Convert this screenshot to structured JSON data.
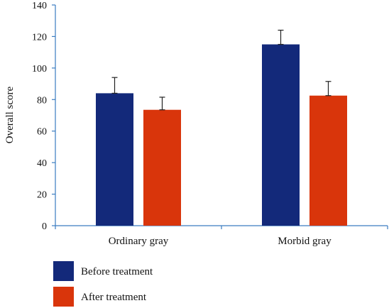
{
  "chart_data": {
    "type": "bar",
    "ylabel": "Overall score",
    "xlabel": "",
    "ylim": [
      0,
      140
    ],
    "yticks": [
      0,
      20,
      40,
      60,
      80,
      100,
      120,
      140
    ],
    "categories": [
      "Ordinary gray",
      "Morbid gray"
    ],
    "series": [
      {
        "name": "Before treatment",
        "color": "#13297a",
        "values": [
          84,
          115
        ],
        "errors": [
          10,
          9
        ]
      },
      {
        "name": "After treatment",
        "color": "#d9350b",
        "values": [
          73.5,
          82.5
        ],
        "errors": [
          8,
          9
        ]
      }
    ],
    "grid": false,
    "legend": "bottom-left",
    "axis_color": "#3a7cc0"
  }
}
